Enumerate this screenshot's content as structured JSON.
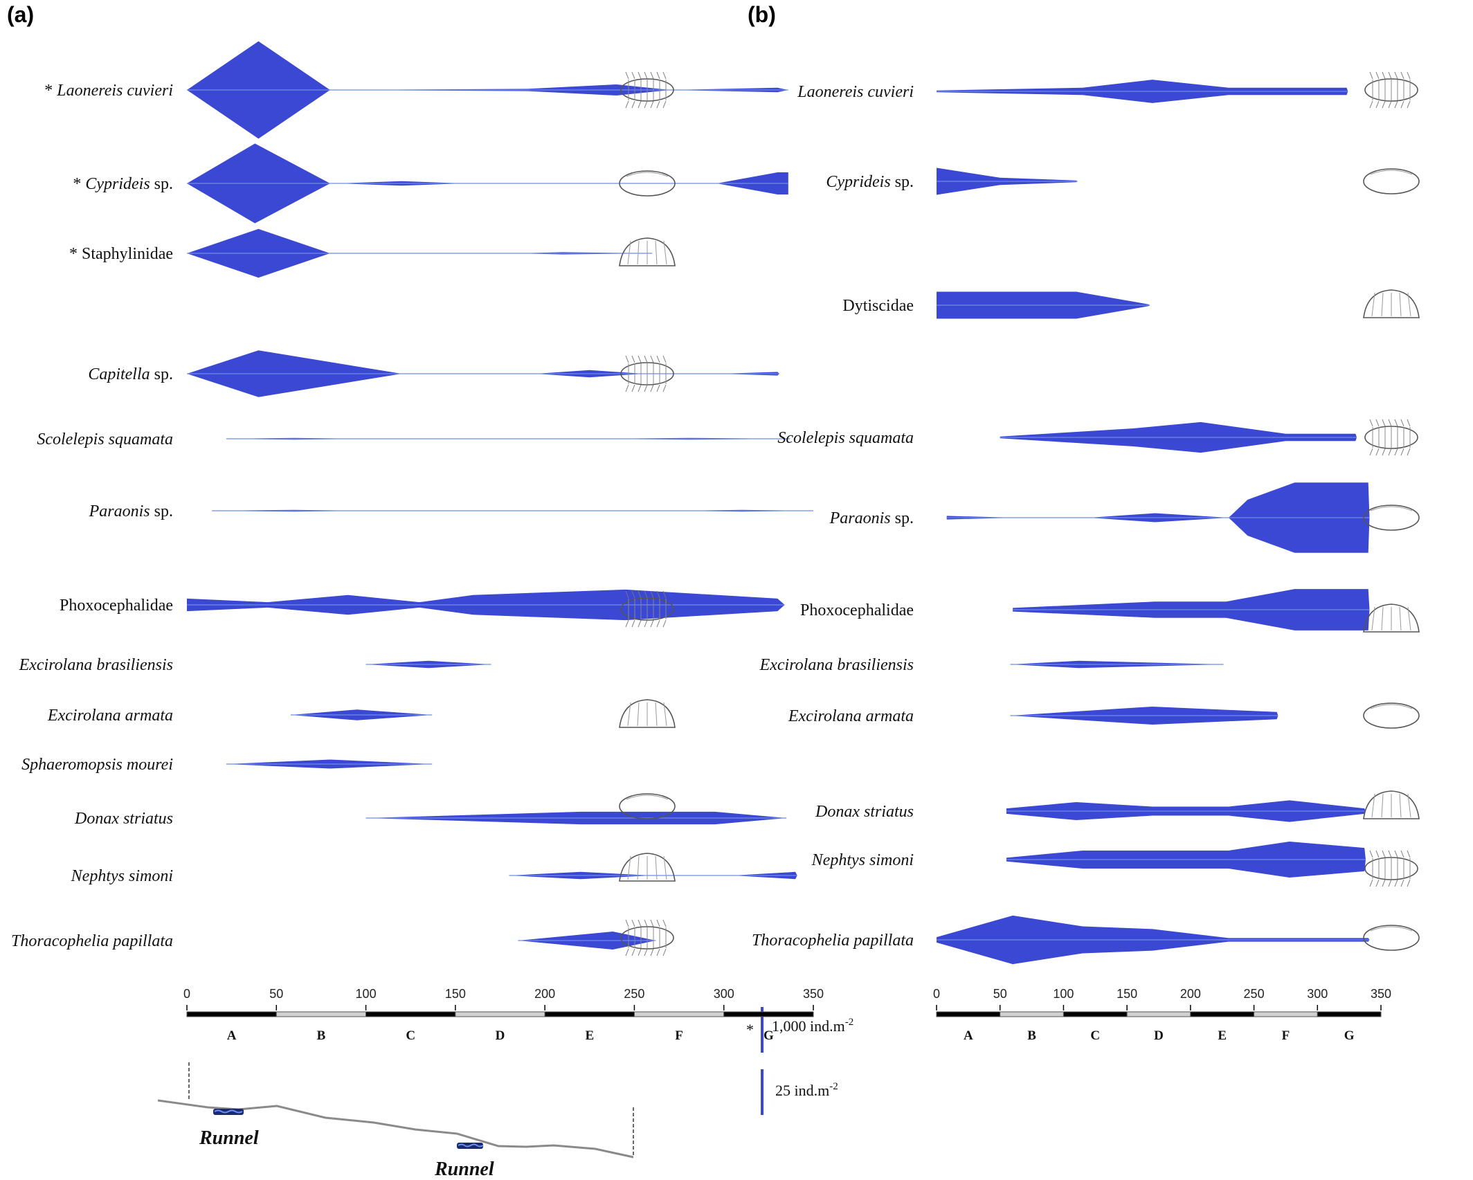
{
  "panels": [
    {
      "id": "a",
      "label": "(a)"
    },
    {
      "id": "b",
      "label": "(b)"
    }
  ],
  "colors": {
    "kite": "#3a48d4",
    "faint": "#6f8be8",
    "scale_bar": "#3a48d4",
    "axis_dark": "#000000",
    "axis_light": "#d0d0d0"
  },
  "axis": {
    "ticks": [
      "0",
      "50",
      "100",
      "150",
      "200",
      "250",
      "300",
      "350"
    ],
    "zones": [
      "A",
      "B",
      "C",
      "D",
      "E",
      "F",
      "G"
    ]
  },
  "scale_legend": {
    "star": "*",
    "big_label": "1,000 ind.m",
    "big_sup": "-2",
    "small_label": "25 ind.m",
    "small_sup": "-2"
  },
  "profile": {
    "runnel_label": "Runnel"
  },
  "chart_data": [
    {
      "type": "kite diagram",
      "panel": "(a)",
      "x_range": [
        0,
        350
      ],
      "x_ticks": [
        0,
        50,
        100,
        150,
        200,
        250,
        300,
        350
      ],
      "zones": [
        "A",
        "B",
        "C",
        "D",
        "E",
        "F",
        "G"
      ],
      "series": [
        {
          "name": "Laonereis cuvieri",
          "star": "* ",
          "italic": true,
          "scale": "1,000 ind.m-2",
          "points": [
            [
              0,
              0
            ],
            [
              40,
              44
            ],
            [
              80,
              0
            ],
            [
              190,
              1
            ],
            [
              240,
              5
            ],
            [
              270,
              0
            ],
            [
              330,
              2
            ],
            [
              336,
              0
            ]
          ]
        },
        {
          "name": "Cyprideis",
          "suffix": " sp.",
          "star": "* ",
          "italic": true,
          "scale": "1,000 ind.m-2",
          "points": [
            [
              0,
              0
            ],
            [
              38,
              36
            ],
            [
              80,
              0
            ],
            [
              84,
              0
            ],
            [
              120,
              2
            ],
            [
              155,
              0
            ],
            [
              296,
              0
            ],
            [
              330,
              10
            ],
            [
              336,
              10
            ]
          ]
        },
        {
          "name": "Staphylinidae",
          "star": "* ",
          "italic": false,
          "scale": "1,000 ind.m-2",
          "points": [
            [
              0,
              0
            ],
            [
              40,
              22
            ],
            [
              80,
              0
            ],
            [
              185,
              0
            ],
            [
              210,
              1
            ],
            [
              260,
              0
            ]
          ]
        },
        {
          "name": "Capitella",
          "suffix": " sp.",
          "italic": true,
          "scale": "25 ind.m-2",
          "points": [
            [
              0,
              0
            ],
            [
              40,
              26
            ],
            [
              120,
              0
            ],
            [
              195,
              0
            ],
            [
              225,
              4
            ],
            [
              255,
              0
            ],
            [
              298,
              0
            ],
            [
              330,
              2
            ],
            [
              331,
              0
            ]
          ]
        },
        {
          "name": "Scolelepis squamata",
          "italic": true,
          "scale": "25 ind.m-2",
          "points": [
            [
              22,
              0
            ],
            [
              60,
              1
            ],
            [
              100,
              0
            ],
            [
              230,
              0
            ],
            [
              280,
              1
            ],
            [
              337,
              0
            ]
          ]
        },
        {
          "name": "Paraonis",
          "suffix": " sp.",
          "italic": true,
          "scale": "25 ind.m-2",
          "points": [
            [
              14,
              0
            ],
            [
              60,
              1
            ],
            [
              102,
              0
            ],
            [
              274,
              0
            ],
            [
              310,
              1
            ],
            [
              350,
              0
            ]
          ]
        },
        {
          "name": "Phoxocephalidae",
          "italic": false,
          "scale": "25 ind.m-2",
          "points": [
            [
              0,
              7
            ],
            [
              45,
              3
            ],
            [
              90,
              11
            ],
            [
              130,
              3
            ],
            [
              160,
              11
            ],
            [
              245,
              17
            ],
            [
              330,
              7
            ],
            [
              334,
              0
            ]
          ]
        },
        {
          "name": "Excirolana brasiliensis",
          "italic": true,
          "scale": "25 ind.m-2",
          "points": [
            [
              100,
              0
            ],
            [
              135,
              4
            ],
            [
              170,
              0
            ]
          ]
        },
        {
          "name": "Excirolana armata",
          "italic": true,
          "scale": "25 ind.m-2",
          "points": [
            [
              58,
              0
            ],
            [
              95,
              6
            ],
            [
              137,
              0
            ]
          ]
        },
        {
          "name": "Sphaeromopsis mourei",
          "italic": true,
          "scale": "25 ind.m-2",
          "points": [
            [
              22,
              0
            ],
            [
              80,
              5
            ],
            [
              137,
              0
            ]
          ]
        },
        {
          "name": "Donax striatus",
          "italic": true,
          "scale": "25 ind.m-2",
          "points": [
            [
              100,
              0
            ],
            [
              220,
              7
            ],
            [
              295,
              7
            ],
            [
              335,
              0
            ]
          ]
        },
        {
          "name": "Nephtys simoni",
          "italic": true,
          "scale": "25 ind.m-2",
          "points": [
            [
              180,
              0
            ],
            [
              220,
              4
            ],
            [
              260,
              0
            ],
            [
              305,
              0
            ],
            [
              340,
              4
            ],
            [
              341,
              0
            ]
          ]
        },
        {
          "name": "Thoracophelia papillata",
          "italic": true,
          "scale": "25 ind.m-2",
          "points": [
            [
              185,
              0
            ],
            [
              238,
              10
            ],
            [
              262,
              0
            ]
          ]
        }
      ]
    },
    {
      "type": "kite diagram",
      "panel": "(b)",
      "x_range": [
        0,
        350
      ],
      "x_ticks": [
        0,
        50,
        100,
        150,
        200,
        250,
        300,
        350
      ],
      "zones": [
        "A",
        "B",
        "C",
        "D",
        "E",
        "F",
        "G"
      ],
      "series": [
        {
          "name": "Laonereis cuvieri",
          "italic": true,
          "scale": "25 ind.m-2",
          "points": [
            [
              0,
              1
            ],
            [
              115,
              4
            ],
            [
              170,
              13
            ],
            [
              230,
              4
            ],
            [
              323,
              4
            ],
            [
              324,
              0
            ]
          ]
        },
        {
          "name": "Cyprideis",
          "suffix": " sp.",
          "italic": true,
          "scale": "25 ind.m-2",
          "points": [
            [
              0,
              15
            ],
            [
              50,
              4
            ],
            [
              110,
              1
            ],
            [
              111,
              0
            ]
          ]
        },
        {
          "name": "Dytiscidae",
          "italic": false,
          "scale": "25 ind.m-2",
          "points": [
            [
              0,
              15
            ],
            [
              110,
              15
            ],
            [
              167,
              1
            ],
            [
              168,
              0
            ]
          ]
        },
        {
          "name": "Scolelepis squamata",
          "italic": true,
          "scale": "25 ind.m-2",
          "points": [
            [
              50,
              1
            ],
            [
              155,
              10
            ],
            [
              208,
              17
            ],
            [
              275,
              4
            ],
            [
              330,
              4
            ],
            [
              331,
              0
            ]
          ]
        },
        {
          "name": "Paraonis",
          "suffix": " sp.",
          "italic": true,
          "scale": "25 ind.m-2",
          "points": [
            [
              8,
              2
            ],
            [
              62,
              0
            ],
            [
              120,
              0
            ],
            [
              172,
              5
            ],
            [
              230,
              0
            ],
            [
              245,
              20
            ],
            [
              282,
              39
            ],
            [
              340,
              39
            ],
            [
              341,
              0
            ]
          ]
        },
        {
          "name": "Phoxocephalidae",
          "italic": false,
          "scale": "25 ind.m-2",
          "points": [
            [
              60,
              2
            ],
            [
              172,
              9
            ],
            [
              228,
              9
            ],
            [
              282,
              23
            ],
            [
              340,
              23
            ],
            [
              341,
              0
            ]
          ]
        },
        {
          "name": "Excirolana brasiliensis",
          "italic": true,
          "scale": "25 ind.m-2",
          "points": [
            [
              58,
              0
            ],
            [
              112,
              4
            ],
            [
              226,
              0
            ]
          ]
        },
        {
          "name": "Excirolana armata",
          "italic": true,
          "scale": "25 ind.m-2",
          "points": [
            [
              58,
              0
            ],
            [
              170,
              10
            ],
            [
              268,
              4
            ],
            [
              269,
              0
            ]
          ]
        },
        {
          "name": "Donax striatus",
          "italic": true,
          "scale": "25 ind.m-2",
          "points": [
            [
              55,
              3
            ],
            [
              110,
              10
            ],
            [
              170,
              5
            ],
            [
              230,
              5
            ],
            [
              278,
              12
            ],
            [
              337,
              3
            ],
            [
              338,
              0
            ]
          ]
        },
        {
          "name": "Nephtys simoni",
          "italic": true,
          "scale": "25 ind.m-2",
          "points": [
            [
              55,
              2
            ],
            [
              115,
              10
            ],
            [
              230,
              10
            ],
            [
              278,
              20
            ],
            [
              337,
              13
            ],
            [
              338,
              0
            ]
          ]
        },
        {
          "name": "Thoracophelia papillata",
          "italic": true,
          "scale": "25 ind.m-2",
          "points": [
            [
              0,
              3
            ],
            [
              60,
              27
            ],
            [
              115,
              15
            ],
            [
              170,
              12
            ],
            [
              230,
              2
            ],
            [
              340,
              2
            ],
            [
              341,
              0
            ]
          ]
        }
      ]
    }
  ]
}
